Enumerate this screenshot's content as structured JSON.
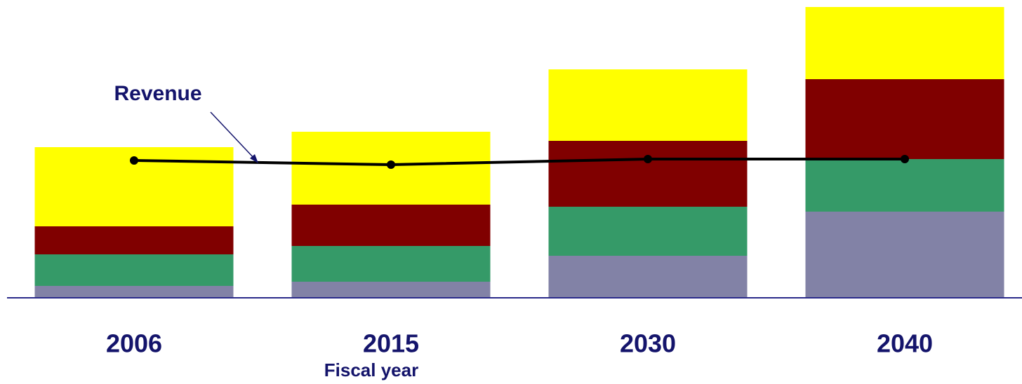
{
  "chart_data": {
    "type": "bar",
    "stacked": true,
    "categories": [
      "2006",
      "2015",
      "2030",
      "2040"
    ],
    "x_label": "Fiscal year",
    "ylim": [
      0,
      420
    ],
    "series": [
      {
        "color": "#8282a6",
        "values": [
          17,
          23,
          60,
          123
        ]
      },
      {
        "color": "#359a68",
        "values": [
          45,
          51,
          70,
          75
        ]
      },
      {
        "color": "#800000",
        "values": [
          40,
          59,
          94,
          114
        ]
      },
      {
        "color": "#ffff00",
        "values": [
          113,
          104,
          102,
          103
        ]
      }
    ],
    "line": {
      "name": "Revenue",
      "color": "#000000",
      "values": [
        196,
        190,
        198,
        198
      ]
    }
  }
}
